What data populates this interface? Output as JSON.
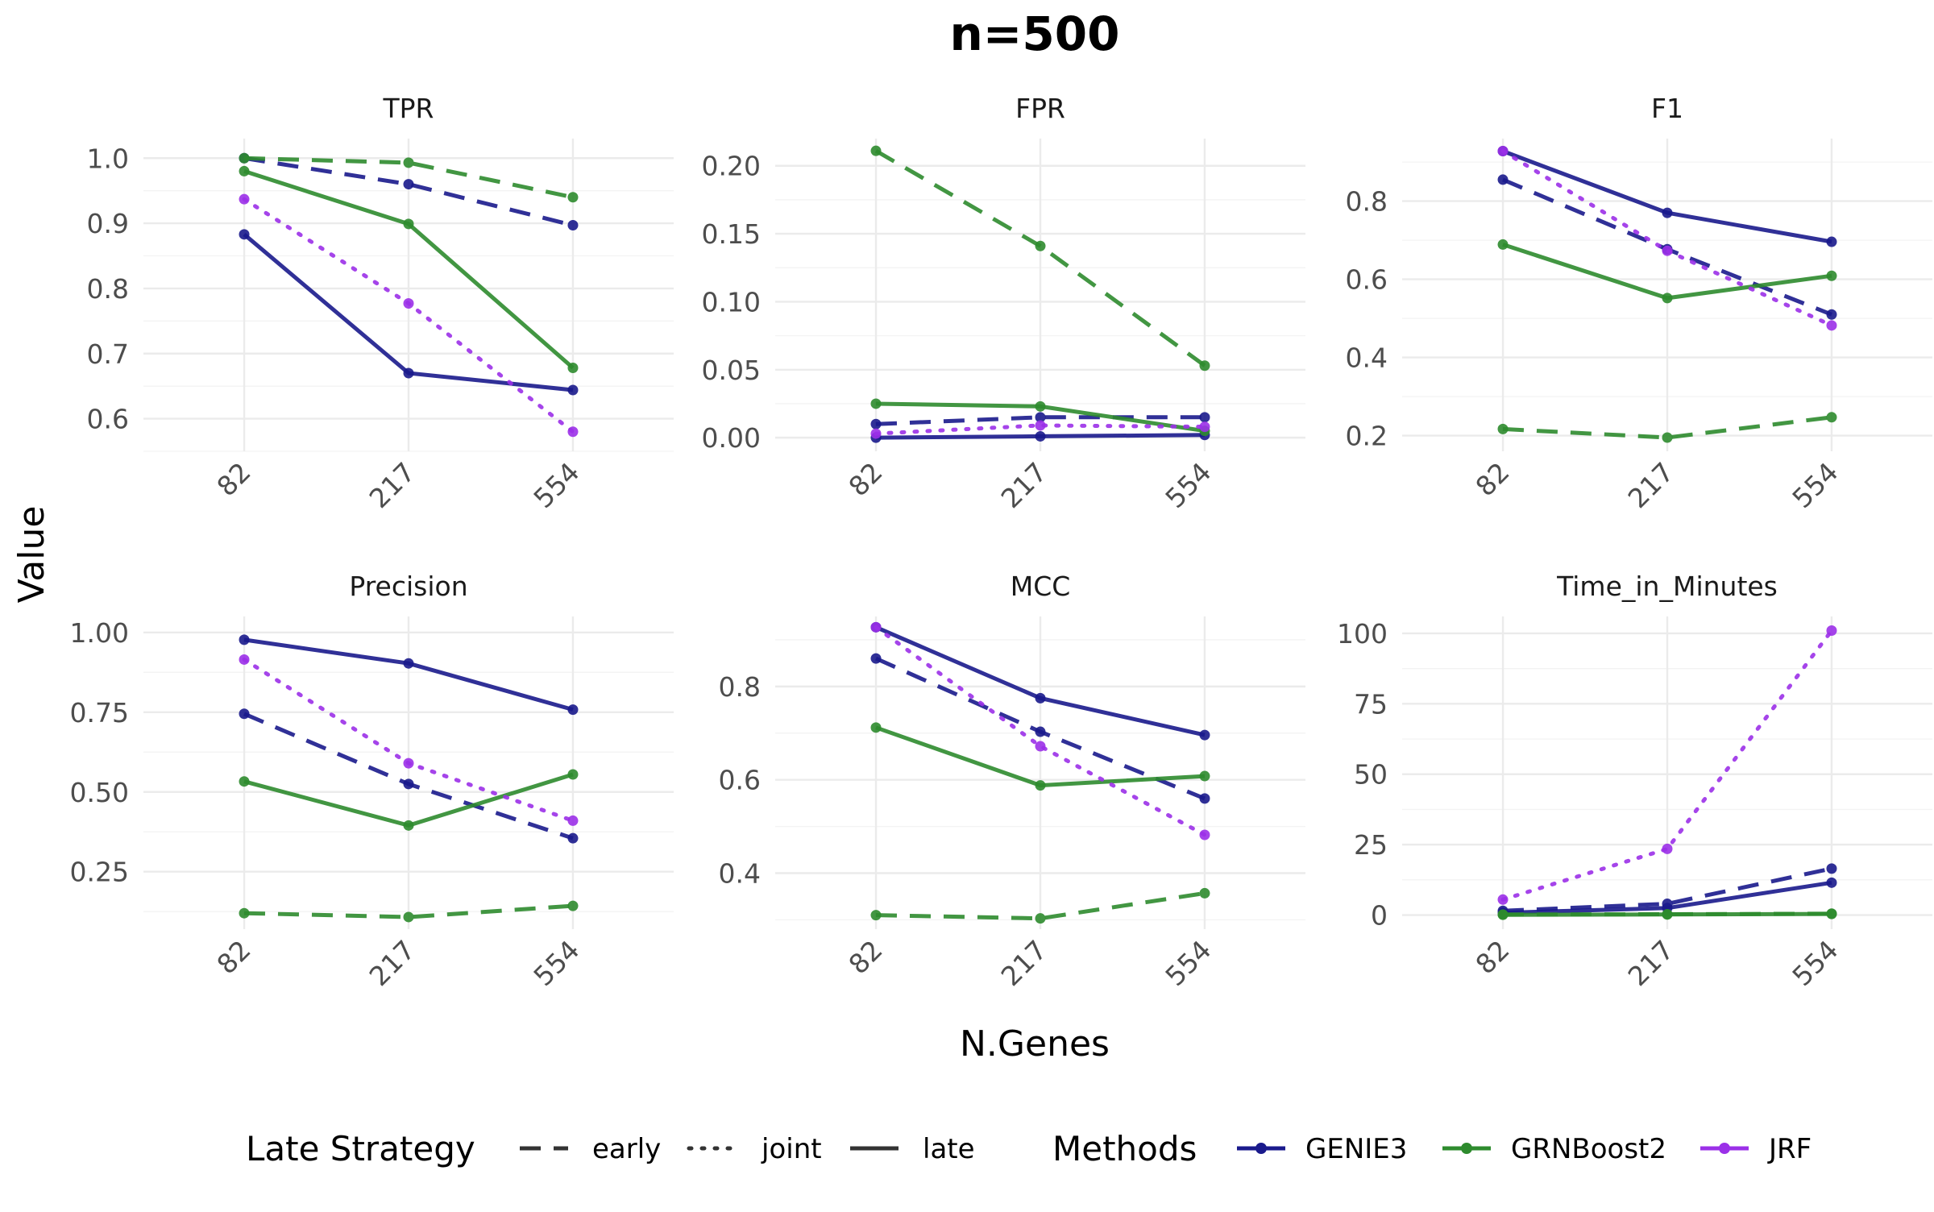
{
  "chart_data": {
    "type": "line",
    "title": "n=500",
    "xlabel": "N.Genes",
    "ylabel": "Value",
    "categories": [
      "82",
      "217",
      "554"
    ],
    "colors": {
      "GENIE3": "#1a1a8c",
      "GRNBoost2": "#2e8b2e",
      "JRF": "#9b30e8"
    },
    "legend": {
      "position": "bottom",
      "linetype_title": "Late Strategy",
      "linetype_items": [
        {
          "label": "early",
          "dash": "dashed"
        },
        {
          "label": "joint",
          "dash": "dotted"
        },
        {
          "label": "late",
          "dash": "solid"
        }
      ],
      "color_title": "Methods",
      "color_items": [
        {
          "label": "GENIE3",
          "color": "#1a1a8c"
        },
        {
          "label": "GRNBoost2",
          "color": "#2e8b2e"
        },
        {
          "label": "JRF",
          "color": "#9b30e8"
        }
      ]
    },
    "facets": [
      {
        "title": "TPR",
        "ylim": [
          0.55,
          1.03
        ],
        "yticks": [
          0.6,
          0.7,
          0.8,
          0.9,
          1.0
        ],
        "ytick_labels": [
          "0.6",
          "0.7",
          "0.8",
          "0.9",
          "1.0"
        ],
        "series": [
          {
            "method": "GENIE3",
            "strategy": "early",
            "values": [
              1.0,
              0.96,
              0.897
            ]
          },
          {
            "method": "GENIE3",
            "strategy": "late",
            "values": [
              0.883,
              0.67,
              0.644
            ]
          },
          {
            "method": "GRNBoost2",
            "strategy": "early",
            "values": [
              1.0,
              0.993,
              0.94
            ]
          },
          {
            "method": "GRNBoost2",
            "strategy": "late",
            "values": [
              0.98,
              0.899,
              0.678
            ]
          },
          {
            "method": "JRF",
            "strategy": "joint",
            "values": [
              0.937,
              0.777,
              0.58
            ]
          }
        ]
      },
      {
        "title": "FPR",
        "ylim": [
          -0.01,
          0.22
        ],
        "yticks": [
          0.0,
          0.05,
          0.1,
          0.15,
          0.2
        ],
        "ytick_labels": [
          "0.00",
          "0.05",
          "0.10",
          "0.15",
          "0.20"
        ],
        "series": [
          {
            "method": "GENIE3",
            "strategy": "early",
            "values": [
              0.01,
              0.015,
              0.015
            ]
          },
          {
            "method": "GENIE3",
            "strategy": "late",
            "values": [
              0.0,
              0.001,
              0.002
            ]
          },
          {
            "method": "GRNBoost2",
            "strategy": "early",
            "values": [
              0.211,
              0.141,
              0.053
            ]
          },
          {
            "method": "GRNBoost2",
            "strategy": "late",
            "values": [
              0.025,
              0.023,
              0.005
            ]
          },
          {
            "method": "JRF",
            "strategy": "joint",
            "values": [
              0.003,
              0.009,
              0.008
            ]
          }
        ]
      },
      {
        "title": "F1",
        "ylim": [
          0.16,
          0.96
        ],
        "yticks": [
          0.2,
          0.4,
          0.6,
          0.8
        ],
        "ytick_labels": [
          "0.2",
          "0.4",
          "0.6",
          "0.8"
        ],
        "series": [
          {
            "method": "GENIE3",
            "strategy": "early",
            "values": [
              0.855,
              0.677,
              0.51
            ]
          },
          {
            "method": "GENIE3",
            "strategy": "late",
            "values": [
              0.928,
              0.77,
              0.696
            ]
          },
          {
            "method": "GRNBoost2",
            "strategy": "early",
            "values": [
              0.217,
              0.195,
              0.247
            ]
          },
          {
            "method": "GRNBoost2",
            "strategy": "late",
            "values": [
              0.689,
              0.552,
              0.609
            ]
          },
          {
            "method": "JRF",
            "strategy": "joint",
            "values": [
              0.928,
              0.673,
              0.482
            ]
          }
        ]
      },
      {
        "title": "Precision",
        "ylim": [
          0.07,
          1.05
        ],
        "yticks": [
          0.25,
          0.5,
          0.75,
          1.0
        ],
        "ytick_labels": [
          "0.25",
          "0.50",
          "0.75",
          "1.00"
        ],
        "series": [
          {
            "method": "GENIE3",
            "strategy": "early",
            "values": [
              0.745,
              0.525,
              0.355
            ]
          },
          {
            "method": "GENIE3",
            "strategy": "late",
            "values": [
              0.977,
              0.903,
              0.758
            ]
          },
          {
            "method": "GRNBoost2",
            "strategy": "early",
            "values": [
              0.12,
              0.108,
              0.143
            ]
          },
          {
            "method": "GRNBoost2",
            "strategy": "late",
            "values": [
              0.533,
              0.395,
              0.555
            ]
          },
          {
            "method": "JRF",
            "strategy": "joint",
            "values": [
              0.915,
              0.59,
              0.41
            ]
          }
        ]
      },
      {
        "title": "MCC",
        "ylim": [
          0.28,
          0.95
        ],
        "yticks": [
          0.4,
          0.6,
          0.8
        ],
        "ytick_labels": [
          "0.4",
          "0.6",
          "0.8"
        ],
        "series": [
          {
            "method": "GENIE3",
            "strategy": "early",
            "values": [
              0.86,
              0.703,
              0.56
            ]
          },
          {
            "method": "GENIE3",
            "strategy": "late",
            "values": [
              0.927,
              0.775,
              0.696
            ]
          },
          {
            "method": "GRNBoost2",
            "strategy": "early",
            "values": [
              0.31,
              0.303,
              0.357
            ]
          },
          {
            "method": "GRNBoost2",
            "strategy": "late",
            "values": [
              0.712,
              0.588,
              0.608
            ]
          },
          {
            "method": "JRF",
            "strategy": "joint",
            "values": [
              0.927,
              0.672,
              0.482
            ]
          }
        ]
      },
      {
        "title": "Time_in_Minutes",
        "ylim": [
          -5,
          106
        ],
        "yticks": [
          0,
          25,
          50,
          75,
          100
        ],
        "ytick_labels": [
          "0",
          "25",
          "50",
          "75",
          "100"
        ],
        "series": [
          {
            "method": "GENIE3",
            "strategy": "early",
            "values": [
              1.5,
              4.0,
              16.5
            ]
          },
          {
            "method": "GENIE3",
            "strategy": "late",
            "values": [
              0.8,
              2.5,
              11.5
            ]
          },
          {
            "method": "GRNBoost2",
            "strategy": "early",
            "values": [
              0.2,
              0.3,
              0.5
            ]
          },
          {
            "method": "GRNBoost2",
            "strategy": "late",
            "values": [
              0.1,
              0.2,
              0.4
            ]
          },
          {
            "method": "JRF",
            "strategy": "joint",
            "values": [
              5.5,
              23.5,
              101
            ]
          }
        ]
      }
    ]
  }
}
